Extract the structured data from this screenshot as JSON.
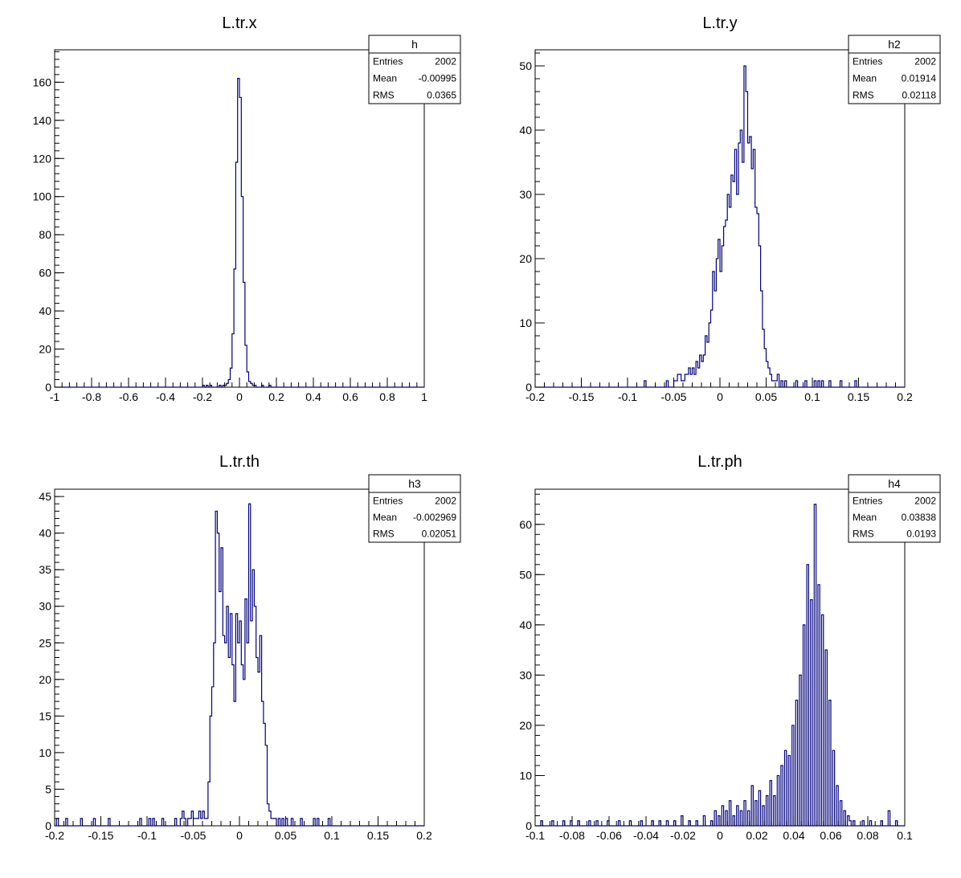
{
  "colors": {
    "histogram": "#000080",
    "frame": "#000000",
    "background": "#ffffff"
  },
  "chart_data": [
    {
      "type": "bar",
      "title": "L.tr.x",
      "xlim": [
        -1,
        1
      ],
      "ylim": [
        0,
        177
      ],
      "xticks": [
        "-1",
        "-0.8",
        "-0.6",
        "-0.4",
        "-0.2",
        "0",
        "0.2",
        "0.4",
        "0.6",
        "0.8",
        "1"
      ],
      "yticks": [
        "0",
        "20",
        "40",
        "60",
        "80",
        "100",
        "120",
        "140",
        "160"
      ],
      "bins": 200,
      "stats": {
        "name": "h",
        "entries": "2002",
        "mean": "-0.00995",
        "rms": "0.0365"
      },
      "bars": [
        [
          -0.195,
          1
        ],
        [
          -0.185,
          0
        ],
        [
          -0.175,
          1
        ],
        [
          -0.165,
          0
        ],
        [
          -0.155,
          1
        ],
        [
          -0.105,
          1
        ],
        [
          -0.085,
          1
        ],
        [
          -0.075,
          1
        ],
        [
          -0.065,
          2
        ],
        [
          -0.055,
          4
        ],
        [
          -0.045,
          10
        ],
        [
          -0.035,
          28
        ],
        [
          -0.025,
          62
        ],
        [
          -0.015,
          118
        ],
        [
          -0.005,
          162
        ],
        [
          0.005,
          152
        ],
        [
          0.015,
          100
        ],
        [
          0.025,
          55
        ],
        [
          0.035,
          22
        ],
        [
          0.045,
          8
        ],
        [
          0.055,
          3
        ],
        [
          0.065,
          2
        ],
        [
          0.075,
          1
        ],
        [
          0.085,
          1
        ],
        [
          0.125,
          1
        ],
        [
          0.165,
          1
        ]
      ]
    },
    {
      "type": "bar",
      "title": "L.tr.y",
      "xlim": [
        -0.2,
        0.2
      ],
      "ylim": [
        0,
        52.5
      ],
      "xticks": [
        "-0.2",
        "-0.15",
        "-0.1",
        "-0.05",
        "0",
        "0.05",
        "0.1",
        "0.15",
        "0.2"
      ],
      "yticks": [
        "0",
        "10",
        "20",
        "30",
        "40",
        "50"
      ],
      "bins": 200,
      "stats": {
        "name": "h2",
        "entries": "2002",
        "mean": "0.01914",
        "rms": "0.02118"
      },
      "bars": [
        [
          -0.081,
          1
        ],
        [
          -0.057,
          1
        ],
        [
          -0.049,
          1
        ],
        [
          -0.047,
          1
        ],
        [
          -0.045,
          2
        ],
        [
          -0.043,
          2
        ],
        [
          -0.041,
          1
        ],
        [
          -0.039,
          1
        ],
        [
          -0.037,
          2
        ],
        [
          -0.035,
          2
        ],
        [
          -0.033,
          3
        ],
        [
          -0.031,
          2
        ],
        [
          -0.029,
          3
        ],
        [
          -0.027,
          2
        ],
        [
          -0.025,
          4
        ],
        [
          -0.023,
          3
        ],
        [
          -0.021,
          5
        ],
        [
          -0.019,
          4
        ],
        [
          -0.017,
          5
        ],
        [
          -0.015,
          8
        ],
        [
          -0.013,
          7
        ],
        [
          -0.011,
          10
        ],
        [
          -0.009,
          12
        ],
        [
          -0.007,
          18
        ],
        [
          -0.005,
          15
        ],
        [
          -0.003,
          20
        ],
        [
          -0.001,
          23
        ],
        [
          0.001,
          18
        ],
        [
          0.003,
          22
        ],
        [
          0.005,
          25
        ],
        [
          0.007,
          26
        ],
        [
          0.009,
          30
        ],
        [
          0.011,
          28
        ],
        [
          0.013,
          33
        ],
        [
          0.015,
          32
        ],
        [
          0.017,
          37
        ],
        [
          0.019,
          30
        ],
        [
          0.021,
          38
        ],
        [
          0.023,
          40
        ],
        [
          0.025,
          35
        ],
        [
          0.027,
          50
        ],
        [
          0.029,
          46
        ],
        [
          0.031,
          38
        ],
        [
          0.033,
          39
        ],
        [
          0.035,
          34
        ],
        [
          0.037,
          37
        ],
        [
          0.039,
          28
        ],
        [
          0.041,
          27
        ],
        [
          0.043,
          22
        ],
        [
          0.045,
          15
        ],
        [
          0.047,
          9
        ],
        [
          0.049,
          6
        ],
        [
          0.051,
          4
        ],
        [
          0.053,
          3
        ],
        [
          0.055,
          2
        ],
        [
          0.057,
          1
        ],
        [
          0.059,
          1
        ],
        [
          0.061,
          1
        ],
        [
          0.063,
          2
        ],
        [
          0.067,
          1
        ],
        [
          0.071,
          1
        ],
        [
          0.083,
          1
        ],
        [
          0.093,
          1
        ],
        [
          0.103,
          1
        ],
        [
          0.107,
          1
        ],
        [
          0.111,
          1
        ],
        [
          0.119,
          1
        ],
        [
          0.131,
          1
        ],
        [
          0.147,
          1
        ]
      ]
    },
    {
      "type": "bar",
      "title": "L.tr.th",
      "xlim": [
        -0.2,
        0.2
      ],
      "ylim": [
        0,
        46
      ],
      "xticks": [
        "-0.2",
        "-0.15",
        "-0.1",
        "-0.05",
        "0",
        "0.05",
        "0.1",
        "0.15",
        "0.2"
      ],
      "yticks": [
        "0",
        "5",
        "10",
        "15",
        "20",
        "25",
        "30",
        "35",
        "40",
        "45"
      ],
      "bins": 200,
      "stats": {
        "name": "h3",
        "entries": "2002",
        "mean": "-0.002969",
        "rms": "0.02051"
      },
      "bars": [
        [
          -0.197,
          1
        ],
        [
          -0.187,
          1
        ],
        [
          -0.171,
          1
        ],
        [
          -0.157,
          1
        ],
        [
          -0.141,
          1
        ],
        [
          -0.107,
          1
        ],
        [
          -0.097,
          1
        ],
        [
          -0.093,
          1
        ],
        [
          -0.083,
          1
        ],
        [
          -0.069,
          1
        ],
        [
          -0.063,
          1
        ],
        [
          -0.061,
          2
        ],
        [
          -0.059,
          1
        ],
        [
          -0.055,
          1
        ],
        [
          -0.053,
          1
        ],
        [
          -0.051,
          2
        ],
        [
          -0.049,
          1
        ],
        [
          -0.047,
          1
        ],
        [
          -0.045,
          1
        ],
        [
          -0.043,
          2
        ],
        [
          -0.041,
          1
        ],
        [
          -0.039,
          2
        ],
        [
          -0.037,
          1
        ],
        [
          -0.035,
          1
        ],
        [
          -0.033,
          6
        ],
        [
          -0.031,
          15
        ],
        [
          -0.029,
          19
        ],
        [
          -0.027,
          25
        ],
        [
          -0.025,
          43
        ],
        [
          -0.023,
          40
        ],
        [
          -0.021,
          32
        ],
        [
          -0.019,
          38
        ],
        [
          -0.017,
          26
        ],
        [
          -0.015,
          25
        ],
        [
          -0.013,
          30
        ],
        [
          -0.011,
          23
        ],
        [
          -0.009,
          29
        ],
        [
          -0.007,
          22
        ],
        [
          -0.005,
          17
        ],
        [
          -0.003,
          29
        ],
        [
          -0.001,
          25
        ],
        [
          0.001,
          28
        ],
        [
          0.003,
          22
        ],
        [
          0.005,
          20
        ],
        [
          0.007,
          31
        ],
        [
          0.009,
          25
        ],
        [
          0.011,
          44
        ],
        [
          0.013,
          28
        ],
        [
          0.015,
          35
        ],
        [
          0.017,
          30
        ],
        [
          0.019,
          23
        ],
        [
          0.021,
          21
        ],
        [
          0.023,
          26
        ],
        [
          0.025,
          17
        ],
        [
          0.027,
          14
        ],
        [
          0.029,
          11
        ],
        [
          0.031,
          3
        ],
        [
          0.033,
          2
        ],
        [
          0.035,
          1
        ],
        [
          0.037,
          1
        ],
        [
          0.039,
          1
        ],
        [
          0.043,
          1
        ],
        [
          0.047,
          1
        ],
        [
          0.051,
          1
        ],
        [
          0.057,
          1
        ],
        [
          0.067,
          1
        ],
        [
          0.081,
          1
        ],
        [
          0.085,
          1
        ],
        [
          0.097,
          1
        ]
      ]
    },
    {
      "type": "bar",
      "title": "L.tr.ph",
      "xlim": [
        -0.1,
        0.1
      ],
      "ylim": [
        0,
        67
      ],
      "xticks": [
        "-0.1",
        "-0.08",
        "-0.06",
        "-0.04",
        "-0.02",
        "0",
        "0.02",
        "0.04",
        "0.06",
        "0.08",
        "0.1"
      ],
      "yticks": [
        "0",
        "10",
        "20",
        "30",
        "40",
        "50",
        "60"
      ],
      "bins": 200,
      "stats": {
        "name": "h4",
        "entries": "2002",
        "mean": "0.03838",
        "rms": "0.0193"
      },
      "bars": [
        [
          -0.097,
          1
        ],
        [
          -0.091,
          1
        ],
        [
          -0.085,
          1
        ],
        [
          -0.081,
          1
        ],
        [
          -0.077,
          1
        ],
        [
          -0.071,
          1
        ],
        [
          -0.067,
          1
        ],
        [
          -0.061,
          1
        ],
        [
          -0.055,
          1
        ],
        [
          -0.049,
          1
        ],
        [
          -0.043,
          1
        ],
        [
          -0.037,
          1
        ],
        [
          -0.033,
          1
        ],
        [
          -0.029,
          1
        ],
        [
          -0.025,
          1
        ],
        [
          -0.021,
          2
        ],
        [
          -0.017,
          1
        ],
        [
          -0.013,
          1
        ],
        [
          -0.009,
          2
        ],
        [
          -0.005,
          1
        ],
        [
          -0.003,
          3
        ],
        [
          -0.001,
          2
        ],
        [
          0.001,
          4
        ],
        [
          0.003,
          3
        ],
        [
          0.005,
          5
        ],
        [
          0.007,
          2
        ],
        [
          0.009,
          4
        ],
        [
          0.011,
          3
        ],
        [
          0.013,
          5
        ],
        [
          0.015,
          3
        ],
        [
          0.017,
          8
        ],
        [
          0.019,
          5
        ],
        [
          0.021,
          7
        ],
        [
          0.023,
          4
        ],
        [
          0.025,
          6
        ],
        [
          0.027,
          9
        ],
        [
          0.029,
          6
        ],
        [
          0.031,
          10
        ],
        [
          0.033,
          12
        ],
        [
          0.035,
          15
        ],
        [
          0.037,
          14
        ],
        [
          0.039,
          20
        ],
        [
          0.041,
          25
        ],
        [
          0.043,
          30
        ],
        [
          0.045,
          40
        ],
        [
          0.047,
          52
        ],
        [
          0.049,
          45
        ],
        [
          0.051,
          64
        ],
        [
          0.053,
          48
        ],
        [
          0.055,
          42
        ],
        [
          0.057,
          35
        ],
        [
          0.059,
          25
        ],
        [
          0.061,
          15
        ],
        [
          0.063,
          8
        ],
        [
          0.065,
          5
        ],
        [
          0.067,
          3
        ],
        [
          0.069,
          2
        ],
        [
          0.071,
          1
        ],
        [
          0.073,
          1
        ],
        [
          0.077,
          1
        ],
        [
          0.081,
          1
        ],
        [
          0.087,
          1
        ],
        [
          0.091,
          3
        ],
        [
          0.095,
          1
        ]
      ]
    }
  ]
}
